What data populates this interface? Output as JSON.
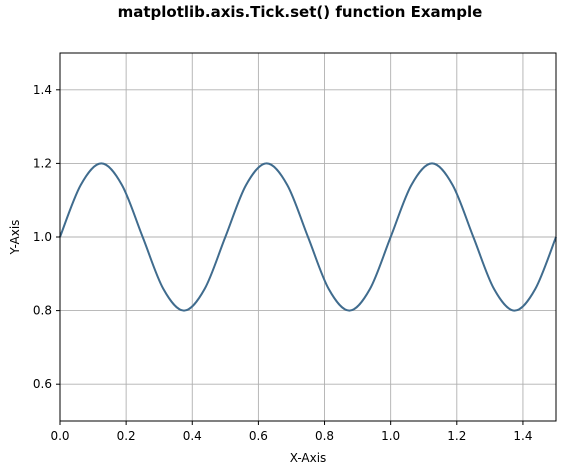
{
  "chart_data": {
    "type": "line",
    "title": "matplotlib.axis.Tick.set() function Example",
    "xlabel": "X-Axis",
    "ylabel": "Y-Axis",
    "xlim": [
      0,
      1.5
    ],
    "ylim": [
      0.5,
      1.5
    ],
    "xticks": [
      0.0,
      0.2,
      0.4,
      0.6,
      0.8,
      1.0,
      1.2,
      1.4
    ],
    "xtick_labels": [
      "0.0",
      "0.2",
      "0.4",
      "0.6",
      "0.8",
      "1.0",
      "1.2",
      "1.4"
    ],
    "yticks": [
      0.6,
      0.8,
      1.0,
      1.2,
      1.4
    ],
    "ytick_labels": [
      "0.6",
      "0.8",
      "1.0",
      "1.2",
      "1.4"
    ],
    "grid": true,
    "line_color": "#406c8e",
    "series": [
      {
        "x": [
          0.0,
          0.0625,
          0.125,
          0.1875,
          0.25,
          0.3125,
          0.375,
          0.4375,
          0.5,
          0.5625,
          0.625,
          0.6875,
          0.75,
          0.8125,
          0.875,
          0.9375,
          1.0,
          1.0625,
          1.125,
          1.1875,
          1.25,
          1.3125,
          1.375,
          1.4375,
          1.5
        ],
        "y": [
          1.0,
          1.141,
          1.2,
          1.141,
          1.0,
          0.859,
          0.8,
          0.859,
          1.0,
          1.141,
          1.2,
          1.141,
          1.0,
          0.859,
          0.8,
          0.859,
          1.0,
          1.141,
          1.2,
          1.141,
          1.0,
          0.859,
          0.8,
          0.859,
          1.0
        ]
      }
    ]
  }
}
